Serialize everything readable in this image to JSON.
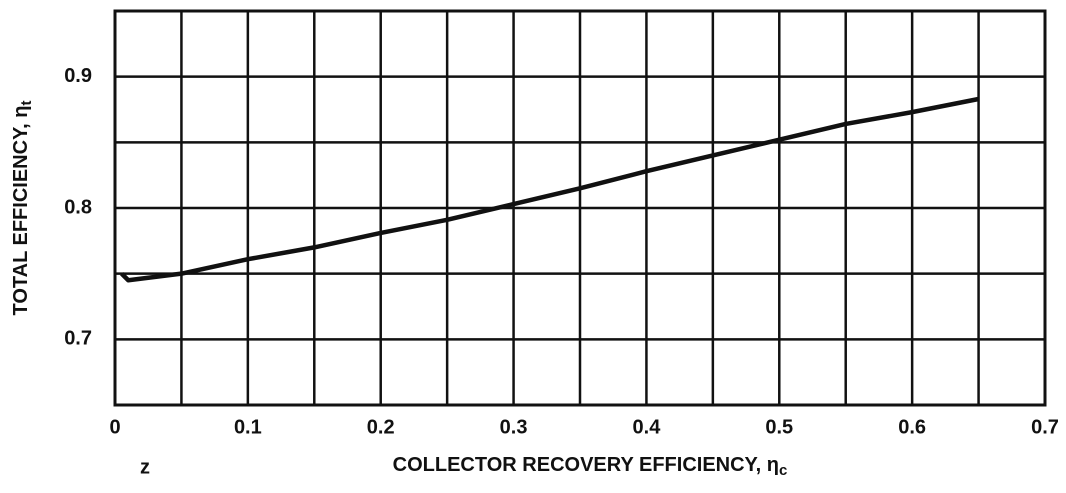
{
  "chart_data": {
    "type": "line",
    "xlabel": "COLLECTOR RECOVERY EFFICIENCY, η",
    "xlabel_subscript": "c",
    "ylabel": "TOTAL EFFICIENCY, η",
    "ylabel_subscript": "t",
    "annotation": "z",
    "x": [
      0.005,
      0.01,
      0.05,
      0.1,
      0.15,
      0.2,
      0.25,
      0.3,
      0.35,
      0.4,
      0.45,
      0.5,
      0.55,
      0.6,
      0.65
    ],
    "series": [
      {
        "color": "#111111",
        "values": [
          0.75,
          0.745,
          0.75,
          0.761,
          0.77,
          0.781,
          0.791,
          0.803,
          0.815,
          0.828,
          0.84,
          0.852,
          0.864,
          0.873,
          0.883
        ]
      }
    ],
    "xlim": [
      0,
      0.7
    ],
    "xticks": [
      0,
      0.1,
      0.2,
      0.3,
      0.4,
      0.5,
      0.6,
      0.7
    ],
    "x_minor_grid": [
      0.05,
      0.15,
      0.25,
      0.35,
      0.45,
      0.55,
      0.65
    ],
    "ylim": [
      0.65,
      0.95
    ],
    "yticks": [
      0.7,
      0.8,
      0.9
    ],
    "y_minor_grid": [
      0.75,
      0.85
    ],
    "grid": true
  }
}
